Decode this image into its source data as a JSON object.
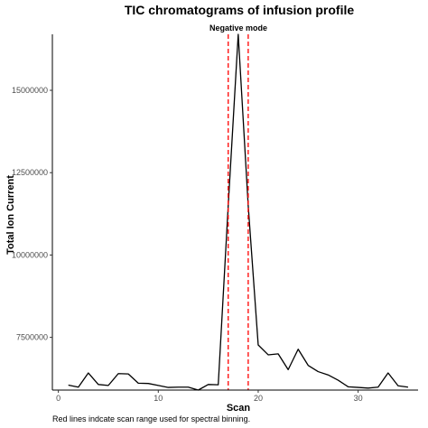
{
  "chart_data": {
    "type": "line",
    "title": "TIC chromatograms of infusion profile",
    "facet_label": "Negative mode",
    "xlabel": "Scan",
    "ylabel": "Total Ion Current",
    "caption": "Red lines indcate scan range used for spectral binning.",
    "xlim": [
      -0.6,
      36
    ],
    "ylim": [
      5900000,
      16700000
    ],
    "x_ticks": [
      0,
      10,
      20,
      30
    ],
    "x_tick_labels": [
      "0",
      "10",
      "20",
      "30"
    ],
    "y_ticks": [
      7500000,
      10000000,
      12500000,
      15000000
    ],
    "y_tick_labels": [
      "7500000",
      "10000000",
      "12500000",
      "15000000"
    ],
    "grid": false,
    "series": [
      {
        "color": "#000000",
        "x": [
          1,
          2,
          3,
          4,
          5,
          6,
          7,
          8,
          9,
          10,
          11,
          12,
          13,
          14,
          15,
          16,
          17,
          18,
          19,
          20,
          21,
          22,
          23,
          24,
          25,
          26,
          27,
          28,
          29,
          30,
          31,
          32,
          33,
          34,
          35
        ],
        "y": [
          6050000,
          5990000,
          6420000,
          6070000,
          6040000,
          6400000,
          6390000,
          6110000,
          6100000,
          6040000,
          5980000,
          5990000,
          5990000,
          5900000,
          6070000,
          6060000,
          11500000,
          16700000,
          11500000,
          7270000,
          6970000,
          7000000,
          6520000,
          7140000,
          6650000,
          6460000,
          6360000,
          6200000,
          6000000,
          5980000,
          5960000,
          5990000,
          6420000,
          6030000,
          5990000
        ]
      }
    ],
    "vlines": [
      {
        "x": 17,
        "color": "#ff0000",
        "style": "dashed"
      },
      {
        "x": 19,
        "color": "#ff0000",
        "style": "dashed"
      }
    ]
  }
}
